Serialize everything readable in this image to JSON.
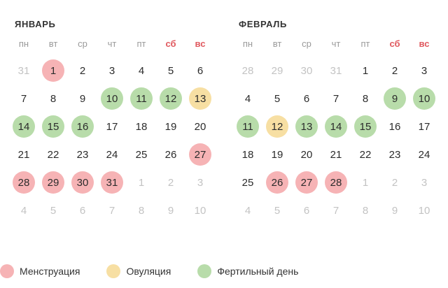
{
  "weekdays": [
    "пн",
    "вт",
    "ср",
    "чт",
    "пт",
    "сб",
    "вс"
  ],
  "colors": {
    "menstruation": "#f6b3b5",
    "ovulation": "#f7dfa3",
    "fertile": "#b8dcaa",
    "weekend": "#e0595f"
  },
  "months": [
    {
      "title": "ЯНВАРЬ",
      "weeks": [
        [
          {
            "d": "31",
            "o": true
          },
          {
            "d": "1",
            "t": "menstruation"
          },
          {
            "d": "2"
          },
          {
            "d": "3"
          },
          {
            "d": "4"
          },
          {
            "d": "5"
          },
          {
            "d": "6"
          }
        ],
        [
          {
            "d": "7"
          },
          {
            "d": "8"
          },
          {
            "d": "9"
          },
          {
            "d": "10",
            "t": "fertile"
          },
          {
            "d": "11",
            "t": "fertile"
          },
          {
            "d": "12",
            "t": "fertile"
          },
          {
            "d": "13",
            "t": "ovulation"
          }
        ],
        [
          {
            "d": "14",
            "t": "fertile"
          },
          {
            "d": "15",
            "t": "fertile"
          },
          {
            "d": "16",
            "t": "fertile"
          },
          {
            "d": "17"
          },
          {
            "d": "18"
          },
          {
            "d": "19"
          },
          {
            "d": "20"
          }
        ],
        [
          {
            "d": "21"
          },
          {
            "d": "22"
          },
          {
            "d": "23"
          },
          {
            "d": "24"
          },
          {
            "d": "25"
          },
          {
            "d": "26"
          },
          {
            "d": "27",
            "t": "menstruation"
          }
        ],
        [
          {
            "d": "28",
            "t": "menstruation"
          },
          {
            "d": "29",
            "t": "menstruation"
          },
          {
            "d": "30",
            "t": "menstruation"
          },
          {
            "d": "31",
            "t": "menstruation"
          },
          {
            "d": "1",
            "o": true
          },
          {
            "d": "2",
            "o": true
          },
          {
            "d": "3",
            "o": true
          }
        ],
        [
          {
            "d": "4",
            "o": true
          },
          {
            "d": "5",
            "o": true
          },
          {
            "d": "6",
            "o": true
          },
          {
            "d": "7",
            "o": true
          },
          {
            "d": "8",
            "o": true
          },
          {
            "d": "9",
            "o": true
          },
          {
            "d": "10",
            "o": true
          }
        ]
      ]
    },
    {
      "title": "ФЕВРАЛЬ",
      "weeks": [
        [
          {
            "d": "28",
            "o": true
          },
          {
            "d": "29",
            "o": true
          },
          {
            "d": "30",
            "o": true
          },
          {
            "d": "31",
            "o": true
          },
          {
            "d": "1"
          },
          {
            "d": "2"
          },
          {
            "d": "3"
          }
        ],
        [
          {
            "d": "4"
          },
          {
            "d": "5"
          },
          {
            "d": "6"
          },
          {
            "d": "7"
          },
          {
            "d": "8"
          },
          {
            "d": "9",
            "t": "fertile"
          },
          {
            "d": "10",
            "t": "fertile"
          }
        ],
        [
          {
            "d": "11",
            "t": "fertile"
          },
          {
            "d": "12",
            "t": "ovulation"
          },
          {
            "d": "13",
            "t": "fertile"
          },
          {
            "d": "14",
            "t": "fertile"
          },
          {
            "d": "15",
            "t": "fertile"
          },
          {
            "d": "16"
          },
          {
            "d": "17"
          }
        ],
        [
          {
            "d": "18"
          },
          {
            "d": "19"
          },
          {
            "d": "20"
          },
          {
            "d": "21"
          },
          {
            "d": "22"
          },
          {
            "d": "23"
          },
          {
            "d": "24"
          }
        ],
        [
          {
            "d": "25"
          },
          {
            "d": "26",
            "t": "menstruation"
          },
          {
            "d": "27",
            "t": "menstruation"
          },
          {
            "d": "28",
            "t": "menstruation"
          },
          {
            "d": "1",
            "o": true
          },
          {
            "d": "2",
            "o": true
          },
          {
            "d": "3",
            "o": true
          }
        ],
        [
          {
            "d": "4",
            "o": true
          },
          {
            "d": "5",
            "o": true
          },
          {
            "d": "6",
            "o": true
          },
          {
            "d": "7",
            "o": true
          },
          {
            "d": "8",
            "o": true
          },
          {
            "d": "9",
            "o": true
          },
          {
            "d": "10",
            "o": true
          }
        ]
      ]
    }
  ],
  "legend": [
    {
      "type": "menstruation",
      "label": "Менструация"
    },
    {
      "type": "ovulation",
      "label": "Овуляция"
    },
    {
      "type": "fertile",
      "label": "Фертильный день"
    }
  ]
}
